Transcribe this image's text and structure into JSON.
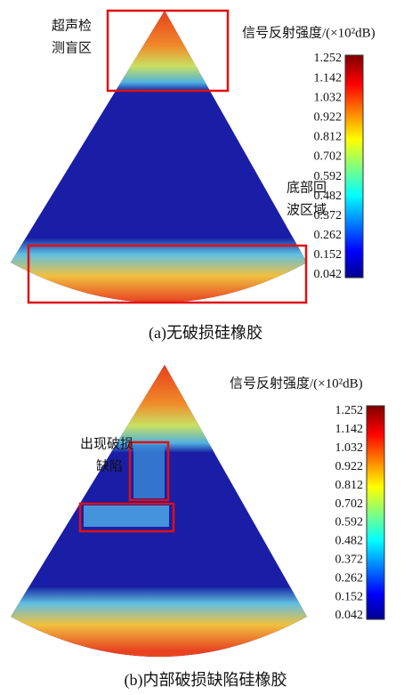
{
  "panels": [
    {
      "caption": "(a)无破损硅橡胶",
      "colorbar": {
        "title": "信号反射强度/(×10²dB)",
        "ticks": [
          1.252,
          1.142,
          1.032,
          0.922,
          0.812,
          0.702,
          0.592,
          0.482,
          0.372,
          0.262,
          0.152,
          0.042
        ]
      },
      "annotations": [
        {
          "lines": [
            "超声检",
            "测盲区"
          ]
        },
        {
          "lines": [
            "底部回",
            "波区域"
          ]
        }
      ]
    },
    {
      "caption": "(b)内部破损缺陷硅橡胶",
      "colorbar": {
        "title": "信号反射强度/(×10²dB)",
        "ticks": [
          1.252,
          1.142,
          1.032,
          0.922,
          0.812,
          0.702,
          0.592,
          0.482,
          0.372,
          0.262,
          0.152,
          0.042
        ]
      },
      "annotations": [
        {
          "lines": [
            "出现破损",
            "缺陷"
          ]
        }
      ]
    }
  ]
}
